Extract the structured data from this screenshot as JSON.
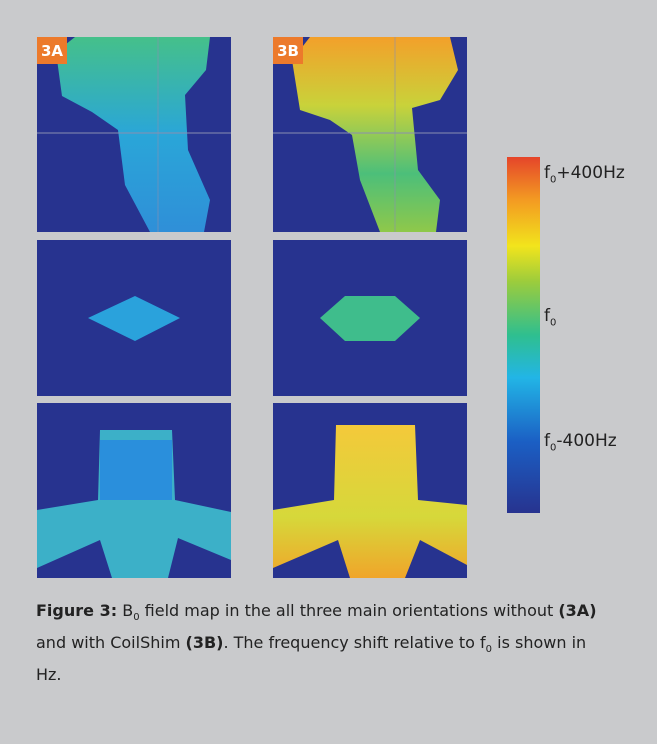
{
  "figure": {
    "panels": [
      {
        "label": "3A"
      },
      {
        "label": "3B"
      }
    ],
    "colorbar": {
      "labels": [
        {
          "symbol": "f",
          "subscript": "0",
          "suffix": "+400Hz"
        },
        {
          "symbol": "f",
          "subscript": "0"
        },
        {
          "symbol": "f",
          "subscript": "0",
          "suffix": "-400Hz"
        }
      ]
    },
    "caption": {
      "lead": "Figure 3:",
      "b_symbol": "B",
      "b_subscript": "0",
      "text1": "field map in the all three main orientations without",
      "ref_a": "(3A)",
      "text2": "and with CoilShim",
      "ref_b": "(3B)",
      "text3": ". The frequency shift relative to f",
      "f_subscript": "0",
      "text4": "is shown in Hz."
    }
  }
}
